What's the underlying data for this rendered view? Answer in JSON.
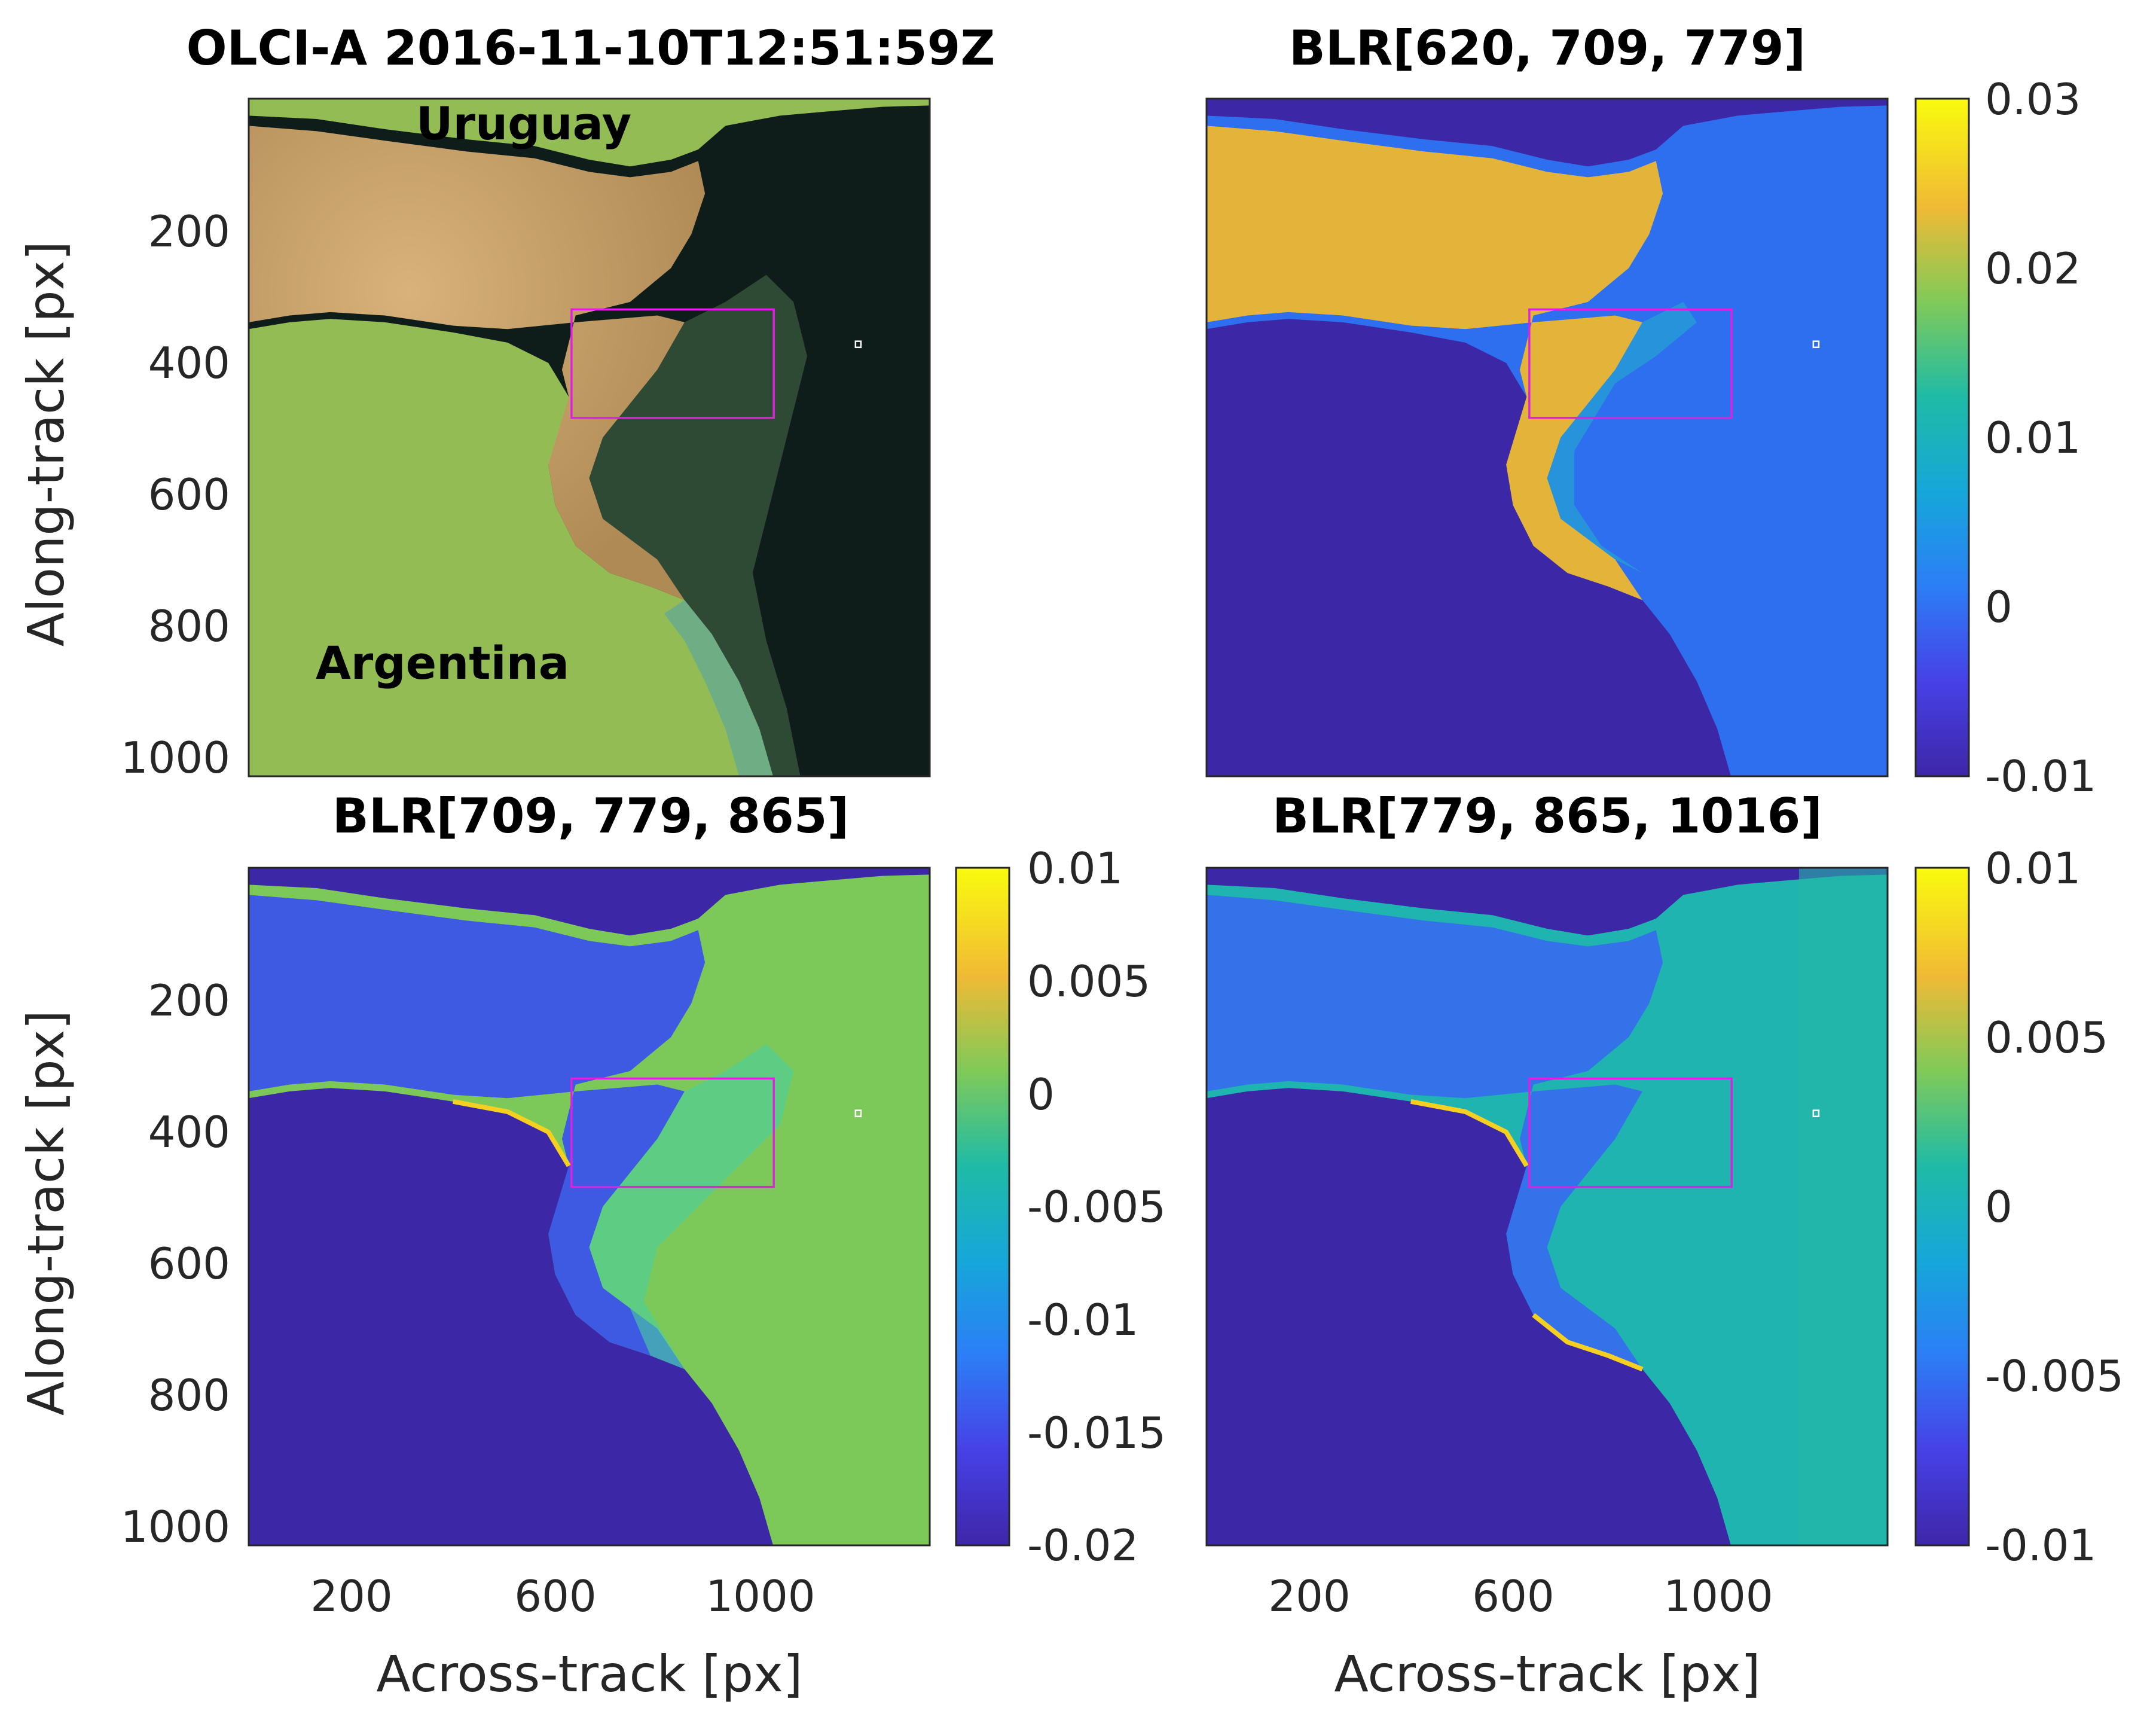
{
  "figure": {
    "colors": {
      "land_rgb": "#9ac255",
      "sediment_rgb": "#c7a06a",
      "ocean_rgb": "#0d1a18",
      "roi_box": "#e020e0",
      "marker": "#ffffff",
      "parula_low": "#3d26a8",
      "parula_high": "#f9fb0e"
    }
  },
  "chart_data": [
    {
      "type": "heatmap",
      "title": "OLCI-A 2016-11-10T12:51:59Z",
      "xlabel": "",
      "ylabel": "Along-track [px]",
      "xlim": [
        0,
        1330
      ],
      "ylim": [
        1030,
        0
      ],
      "x_ticks": [],
      "y_ticks": [
        "200",
        "400",
        "600",
        "800",
        "1000"
      ],
      "annotations": [
        "Uruguay",
        "Argentina"
      ],
      "roi_box": {
        "x0": 630,
        "x1": 1025,
        "y0": 320,
        "y1": 485
      },
      "marker": {
        "x": 1190,
        "y": 375
      },
      "rendering": "true-color RGB composite"
    },
    {
      "type": "heatmap",
      "title": "BLR[620, 709, 779]",
      "xlabel": "",
      "ylabel": "",
      "xlim": [
        0,
        1330
      ],
      "ylim": [
        1030,
        0
      ],
      "colorbar": {
        "min": -0.01,
        "max": 0.03,
        "ticks": [
          "0.03",
          "0.02",
          "0.01",
          "0",
          "-0.01"
        ],
        "colormap": "parula"
      },
      "roi_box": {
        "x0": 630,
        "x1": 1025,
        "y0": 320,
        "y1": 485
      },
      "marker": {
        "x": 1190,
        "y": 375
      }
    },
    {
      "type": "heatmap",
      "title": "BLR[709, 779, 865]",
      "xlabel": "Across-track [px]",
      "ylabel": "Along-track [px]",
      "xlim": [
        0,
        1330
      ],
      "ylim": [
        1030,
        0
      ],
      "x_ticks": [
        "200",
        "600",
        "1000"
      ],
      "y_ticks": [
        "200",
        "400",
        "600",
        "800",
        "1000"
      ],
      "colorbar": {
        "min": -0.02,
        "max": 0.01,
        "ticks": [
          "0.01",
          "0.005",
          "0",
          "-0.005",
          "-0.01",
          "-0.015",
          "-0.02"
        ],
        "colormap": "parula"
      },
      "roi_box": {
        "x0": 630,
        "x1": 1025,
        "y0": 320,
        "y1": 485
      },
      "marker": {
        "x": 1190,
        "y": 375
      }
    },
    {
      "type": "heatmap",
      "title": "BLR[779, 865, 1016]",
      "xlabel": "Across-track [px]",
      "ylabel": "",
      "xlim": [
        0,
        1330
      ],
      "ylim": [
        1030,
        0
      ],
      "x_ticks": [
        "200",
        "600",
        "1000"
      ],
      "colorbar": {
        "min": -0.01,
        "max": 0.01,
        "ticks": [
          "0.01",
          "0.005",
          "0",
          "-0.005",
          "-0.01"
        ],
        "colormap": "parula"
      },
      "roi_box": {
        "x0": 630,
        "x1": 1025,
        "y0": 320,
        "y1": 485
      },
      "marker": {
        "x": 1190,
        "y": 375
      }
    }
  ]
}
